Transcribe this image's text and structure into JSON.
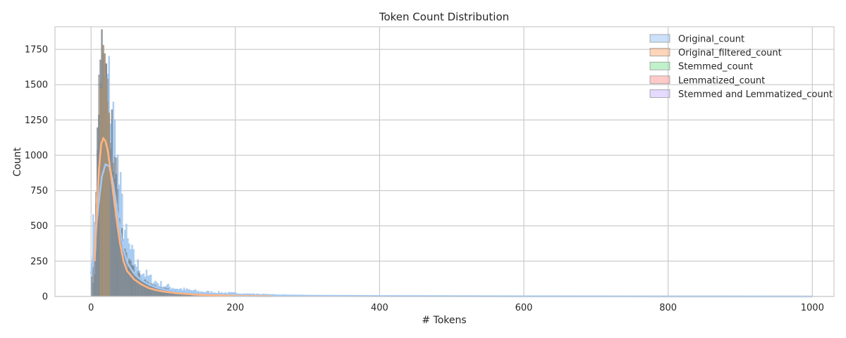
{
  "chart_data": {
    "type": "histogram",
    "title": "Token Count Distribution",
    "xlabel": "# Tokens",
    "ylabel": "Count",
    "xlim": [
      -50,
      1030
    ],
    "ylim": [
      0,
      1910
    ],
    "x_ticks": [
      0,
      200,
      400,
      600,
      800,
      1000
    ],
    "y_ticks": [
      0,
      250,
      500,
      750,
      1000,
      1250,
      1500,
      1750
    ],
    "grid": true,
    "legend_position": "top-right",
    "bin_width": 2,
    "series": [
      {
        "name": "Original_count",
        "color": "#a1c9f4",
        "peak_x": 20,
        "peak_count": 1650,
        "kde": [
          [
            0,
            160
          ],
          [
            5,
            380
          ],
          [
            10,
            640
          ],
          [
            15,
            850
          ],
          [
            20,
            935
          ],
          [
            25,
            925
          ],
          [
            30,
            820
          ],
          [
            35,
            650
          ],
          [
            40,
            470
          ],
          [
            45,
            330
          ],
          [
            50,
            240
          ],
          [
            60,
            160
          ],
          [
            70,
            115
          ],
          [
            80,
            85
          ],
          [
            90,
            65
          ],
          [
            100,
            50
          ],
          [
            120,
            35
          ],
          [
            150,
            22
          ],
          [
            200,
            14
          ],
          [
            250,
            8
          ],
          [
            300,
            5
          ],
          [
            400,
            3
          ],
          [
            600,
            1
          ],
          [
            800,
            0.5
          ],
          [
            1000,
            0
          ]
        ],
        "x_max": 985
      },
      {
        "name": "Original_filtered_count",
        "color": "#ffb482",
        "peak_x": 16,
        "peak_count": 1780,
        "kde": [
          [
            5,
            250
          ],
          [
            8,
            600
          ],
          [
            11,
            900
          ],
          [
            14,
            1080
          ],
          [
            17,
            1120
          ],
          [
            20,
            1100
          ],
          [
            23,
            1040
          ],
          [
            26,
            930
          ],
          [
            30,
            760
          ],
          [
            35,
            560
          ],
          [
            40,
            380
          ],
          [
            45,
            250
          ],
          [
            50,
            180
          ],
          [
            60,
            120
          ],
          [
            70,
            85
          ],
          [
            80,
            60
          ],
          [
            90,
            45
          ],
          [
            100,
            35
          ],
          [
            120,
            22
          ],
          [
            150,
            12
          ],
          [
            200,
            5
          ],
          [
            250,
            2
          ]
        ],
        "x_max": 230
      },
      {
        "name": "Stemmed_count",
        "color": "#8de5a1"
      },
      {
        "name": "Lemmatized_count",
        "color": "#ff9f9b"
      },
      {
        "name": "Stemmed and Lemmatized_count",
        "color": "#d0bbff"
      }
    ]
  }
}
